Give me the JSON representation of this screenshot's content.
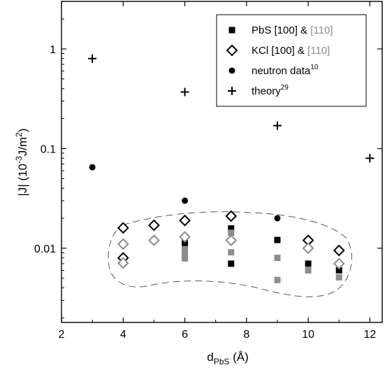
{
  "chart_data": {
    "type": "scatter",
    "xlabel": {
      "main": "d",
      "sub": "PbS",
      "unit": " (Å)"
    },
    "ylabel": {
      "pre": "|J| (10",
      "sup": "-3",
      "mid": "J/m",
      "sup2": "2",
      "post": ")"
    },
    "xlim": [
      2,
      12.4
    ],
    "ylim": [
      0.0018,
      3.0
    ],
    "yscale": "log",
    "xticks": [
      2,
      4,
      6,
      8,
      10,
      12
    ],
    "xtick_labels": [
      "2",
      "4",
      "6",
      "8",
      "10",
      "12"
    ],
    "yticks": [
      0.01,
      0.1,
      1
    ],
    "ytick_labels": [
      "0.01",
      "0.1",
      "1"
    ],
    "legend_position": "top-right",
    "colors": {
      "black": "#000000",
      "gray": "#8c8c8c",
      "envelope": "#555555"
    },
    "legend": [
      {
        "marker": "square",
        "parts": [
          {
            "t": "PbS [100] & ",
            "c": "black"
          },
          {
            "t": "[110]",
            "c": "gray"
          }
        ]
      },
      {
        "marker": "diamond",
        "parts": [
          {
            "t": "KCl [100] & ",
            "c": "black"
          },
          {
            "t": "[110]",
            "c": "gray"
          }
        ]
      },
      {
        "marker": "circle",
        "parts": [
          {
            "t": "neutron data",
            "c": "black"
          }
        ],
        "sup": "10"
      },
      {
        "marker": "plus",
        "parts": [
          {
            "t": "theory",
            "c": "black"
          }
        ],
        "sup": "29"
      }
    ],
    "series": [
      {
        "name": "PbS [100]",
        "marker": "square",
        "color": "black",
        "x": [
          6,
          6,
          7.5,
          7.5,
          9,
          10,
          11
        ],
        "y": [
          0.0112,
          0.0103,
          0.0158,
          0.007,
          0.0121,
          0.007,
          0.006
        ]
      },
      {
        "name": "PbS [110]",
        "marker": "square",
        "color": "gray",
        "x": [
          6,
          6,
          6,
          7.5,
          7.5,
          7.5,
          9,
          9,
          10,
          11
        ],
        "y": [
          0.0098,
          0.0088,
          0.0079,
          0.0143,
          0.012,
          0.0091,
          0.008,
          0.0048,
          0.006,
          0.0051
        ]
      },
      {
        "name": "KCl [100]",
        "marker": "diamond",
        "color": "black",
        "x": [
          4,
          4,
          5,
          6,
          7.5,
          10,
          11
        ],
        "y": [
          0.016,
          0.008,
          0.017,
          0.019,
          0.021,
          0.012,
          0.0095
        ]
      },
      {
        "name": "KCl [110]",
        "marker": "diamond",
        "color": "gray",
        "x": [
          4,
          4,
          5,
          6,
          7.5,
          10,
          11
        ],
        "y": [
          0.011,
          0.0071,
          0.012,
          0.013,
          0.012,
          0.01,
          0.007
        ]
      },
      {
        "name": "neutron data",
        "marker": "circle",
        "color": "black",
        "x": [
          3,
          6,
          9
        ],
        "y": [
          0.065,
          0.03,
          0.02
        ]
      },
      {
        "name": "theory",
        "marker": "plus",
        "color": "black",
        "x": [
          3,
          6,
          9,
          12
        ],
        "y": [
          0.8,
          0.37,
          0.17,
          0.08
        ]
      }
    ]
  }
}
